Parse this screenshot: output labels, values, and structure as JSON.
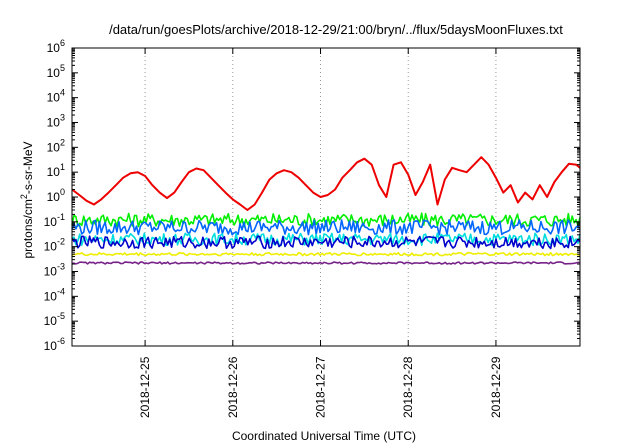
{
  "chart_data": {
    "type": "line",
    "title": "/data/run/goesPlots/archive/2018-12-29/21:00/bryn/../flux/5daysMoonFluxes.txt",
    "xlabel": "Coordinated Universal Time (UTC)",
    "ylabel": "protons/cm²-s-sr-MeV",
    "ylabel_parts": {
      "pre": "protons/cm",
      "sup": "2",
      "post": "-s-sr-MeV"
    },
    "x_scale": "time",
    "xlim": [
      "2018-12-24T04:00",
      "2018-12-29T23:00"
    ],
    "x_ticks": [
      {
        "at": "2018-12-25T00:00",
        "label": "2018-12-25"
      },
      {
        "at": "2018-12-26T00:00",
        "label": "2018-12-26"
      },
      {
        "at": "2018-12-27T00:00",
        "label": "2018-12-27"
      },
      {
        "at": "2018-12-28T00:00",
        "label": "2018-12-28"
      },
      {
        "at": "2018-12-29T00:00",
        "label": "2018-12-29"
      }
    ],
    "y_scale": "log",
    "ylim": [
      1e-06,
      1000000.0
    ],
    "y_ticks": [
      {
        "value": 1000000.0,
        "base": "10",
        "exp": "6"
      },
      {
        "value": 100000.0,
        "base": "10",
        "exp": "5"
      },
      {
        "value": 10000.0,
        "base": "10",
        "exp": "4"
      },
      {
        "value": 1000.0,
        "base": "10",
        "exp": "3"
      },
      {
        "value": 100.0,
        "base": "10",
        "exp": "2"
      },
      {
        "value": 10.0,
        "base": "10",
        "exp": "1"
      },
      {
        "value": 1.0,
        "base": "10",
        "exp": "0"
      },
      {
        "value": 0.1,
        "base": "10",
        "exp": "-1"
      },
      {
        "value": 0.01,
        "base": "10",
        "exp": "-2"
      },
      {
        "value": 0.001,
        "base": "10",
        "exp": "-3"
      },
      {
        "value": 0.0001,
        "base": "10",
        "exp": "-4"
      },
      {
        "value": 1e-05,
        "base": "10",
        "exp": "-5"
      },
      {
        "value": 1e-06,
        "base": "10",
        "exp": "-6"
      }
    ],
    "grid": "vertical dotted at x ticks",
    "legend": "none",
    "series": [
      {
        "color": "#ee0000",
        "x": [
          "2018-12-24T04:00",
          "2018-12-24T06:00",
          "2018-12-24T08:00",
          "2018-12-24T10:00",
          "2018-12-24T12:00",
          "2018-12-24T14:00",
          "2018-12-24T16:00",
          "2018-12-24T18:00",
          "2018-12-24T20:00",
          "2018-12-24T22:00",
          "2018-12-25T00:00",
          "2018-12-25T02:00",
          "2018-12-25T04:00",
          "2018-12-25T06:00",
          "2018-12-25T08:00",
          "2018-12-25T10:00",
          "2018-12-25T12:00",
          "2018-12-25T14:00",
          "2018-12-25T16:00",
          "2018-12-25T18:00",
          "2018-12-25T20:00",
          "2018-12-25T22:00",
          "2018-12-26T00:00",
          "2018-12-26T02:00",
          "2018-12-26T04:00",
          "2018-12-26T06:00",
          "2018-12-26T08:00",
          "2018-12-26T10:00",
          "2018-12-26T12:00",
          "2018-12-26T14:00",
          "2018-12-26T16:00",
          "2018-12-26T18:00",
          "2018-12-26T20:00",
          "2018-12-26T22:00",
          "2018-12-27T00:00",
          "2018-12-27T02:00",
          "2018-12-27T04:00",
          "2018-12-27T06:00",
          "2018-12-27T08:00",
          "2018-12-27T10:00",
          "2018-12-27T12:00",
          "2018-12-27T14:00",
          "2018-12-27T16:00",
          "2018-12-27T18:00",
          "2018-12-27T20:00",
          "2018-12-27T22:00",
          "2018-12-28T00:00",
          "2018-12-28T02:00",
          "2018-12-28T04:00",
          "2018-12-28T06:00",
          "2018-12-28T08:00",
          "2018-12-28T10:00",
          "2018-12-28T12:00",
          "2018-12-28T14:00",
          "2018-12-28T16:00",
          "2018-12-28T18:00",
          "2018-12-28T20:00",
          "2018-12-28T22:00",
          "2018-12-29T00:00",
          "2018-12-29T02:00",
          "2018-12-29T04:00",
          "2018-12-29T06:00",
          "2018-12-29T08:00",
          "2018-12-29T10:00",
          "2018-12-29T12:00",
          "2018-12-29T14:00",
          "2018-12-29T16:00",
          "2018-12-29T18:00",
          "2018-12-29T20:00",
          "2018-12-29T22:00",
          "2018-12-29T23:00"
        ],
        "values": [
          2,
          1.2,
          0.7,
          0.5,
          0.8,
          1.5,
          3,
          6,
          9,
          10,
          7,
          3,
          1.5,
          0.9,
          1.5,
          4,
          10,
          14,
          12,
          6,
          3,
          1.5,
          0.8,
          0.5,
          0.3,
          0.5,
          1.5,
          5,
          9,
          12,
          10,
          6,
          3,
          1.5,
          1,
          1.2,
          2,
          6,
          12,
          25,
          35,
          20,
          3,
          1,
          20,
          25,
          8,
          1.2,
          4,
          20,
          0.5,
          5,
          15,
          12,
          10,
          20,
          40,
          20,
          6,
          1.5,
          3,
          0.6,
          1.5,
          0.8,
          3,
          1,
          4,
          10,
          22,
          20,
          15
        ]
      },
      {
        "color": "#00ee00",
        "base": 0.12,
        "amplitude": 0.55
      },
      {
        "color": "#0066ff",
        "base": 0.06,
        "amplitude": 0.6
      },
      {
        "color": "#00dddd",
        "base": 0.02,
        "amplitude": 0.5
      },
      {
        "color": "#0000cc",
        "base": 0.015,
        "amplitude": 0.5
      },
      {
        "color": "#eeee00",
        "base": 0.005,
        "amplitude": 0.12
      },
      {
        "color": "#772288",
        "base": 0.0022,
        "amplitude": 0.08
      }
    ]
  }
}
